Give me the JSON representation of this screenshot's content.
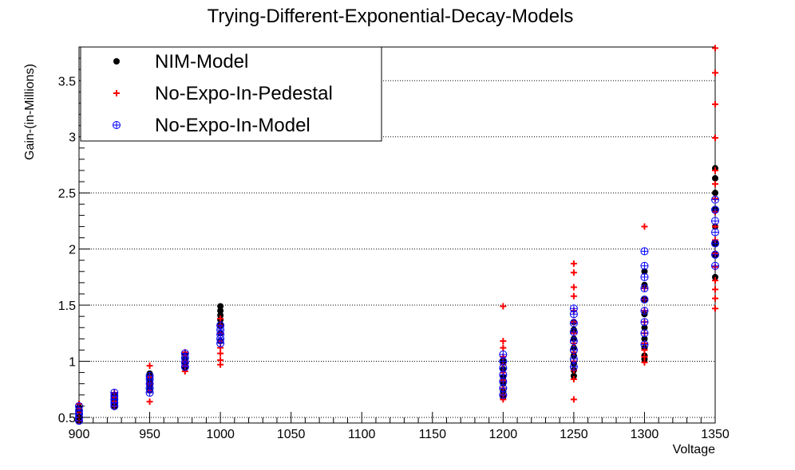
{
  "chart_data": {
    "type": "scatter",
    "title": "Trying-Different-Exponential-Decay-Models",
    "xlabel": "Voltage",
    "ylabel": "Gain-(in-Millions)",
    "xlim": [
      900,
      1350
    ],
    "ylim": [
      0.45,
      3.8
    ],
    "x_ticks": [
      900,
      950,
      1000,
      1050,
      1100,
      1150,
      1200,
      1250,
      1300,
      1350
    ],
    "y_ticks": [
      0.5,
      1,
      1.5,
      2,
      2.5,
      3,
      3.5
    ],
    "y_tick_labels": [
      "0.5",
      "1",
      "1.5",
      "2",
      "2.5",
      "3",
      "3.5"
    ],
    "grid": "horizontal dotted",
    "legend_position": "top-left",
    "series": [
      {
        "name": "NIM-Model",
        "marker": "filled-circle",
        "color": "#000000",
        "points": [
          [
            900,
            0.47
          ],
          [
            900,
            0.5
          ],
          [
            900,
            0.53
          ],
          [
            900,
            0.56
          ],
          [
            900,
            0.59
          ],
          [
            925,
            0.6
          ],
          [
            925,
            0.63
          ],
          [
            925,
            0.66
          ],
          [
            925,
            0.69
          ],
          [
            950,
            0.74
          ],
          [
            950,
            0.78
          ],
          [
            950,
            0.82
          ],
          [
            950,
            0.86
          ],
          [
            950,
            0.89
          ],
          [
            975,
            0.94
          ],
          [
            975,
            0.98
          ],
          [
            975,
            1.02
          ],
          [
            975,
            1.06
          ],
          [
            1000,
            1.18
          ],
          [
            1000,
            1.25
          ],
          [
            1000,
            1.32
          ],
          [
            1000,
            1.37
          ],
          [
            1000,
            1.41
          ],
          [
            1000,
            1.45
          ],
          [
            1000,
            1.49
          ],
          [
            1200,
            0.68
          ],
          [
            1200,
            0.73
          ],
          [
            1200,
            0.8
          ],
          [
            1200,
            0.86
          ],
          [
            1200,
            0.93
          ],
          [
            1200,
            1.0
          ],
          [
            1250,
            0.87
          ],
          [
            1250,
            0.92
          ],
          [
            1250,
            0.98
          ],
          [
            1250,
            1.05
          ],
          [
            1250,
            1.12
          ],
          [
            1250,
            1.2
          ],
          [
            1250,
            1.28
          ],
          [
            1250,
            1.35
          ],
          [
            1300,
            1.02
          ],
          [
            1300,
            1.05
          ],
          [
            1300,
            1.12
          ],
          [
            1300,
            1.2
          ],
          [
            1300,
            1.3
          ],
          [
            1300,
            1.42
          ],
          [
            1300,
            1.55
          ],
          [
            1300,
            1.68
          ],
          [
            1300,
            1.8
          ],
          [
            1350,
            1.75
          ],
          [
            1350,
            1.95
          ],
          [
            1350,
            2.05
          ],
          [
            1350,
            2.2
          ],
          [
            1350,
            2.35
          ],
          [
            1350,
            2.5
          ],
          [
            1350,
            2.63
          ],
          [
            1350,
            2.72
          ]
        ]
      },
      {
        "name": "No-Expo-In-Pedestal",
        "marker": "plus",
        "color": "#ff0000",
        "points": [
          [
            900,
            0.47
          ],
          [
            900,
            0.5
          ],
          [
            900,
            0.54
          ],
          [
            900,
            0.58
          ],
          [
            900,
            0.62
          ],
          [
            925,
            0.6
          ],
          [
            925,
            0.64
          ],
          [
            925,
            0.68
          ],
          [
            925,
            0.72
          ],
          [
            950,
            0.64
          ],
          [
            950,
            0.74
          ],
          [
            950,
            0.8
          ],
          [
            950,
            0.86
          ],
          [
            950,
            0.96
          ],
          [
            975,
            0.91
          ],
          [
            975,
            0.96
          ],
          [
            975,
            1.0
          ],
          [
            975,
            1.05
          ],
          [
            975,
            1.08
          ],
          [
            1000,
            0.97
          ],
          [
            1000,
            1.01
          ],
          [
            1000,
            1.07
          ],
          [
            1000,
            1.12
          ],
          [
            1000,
            1.18
          ],
          [
            1000,
            1.25
          ],
          [
            1000,
            1.32
          ],
          [
            1000,
            1.38
          ],
          [
            1200,
            0.66
          ],
          [
            1200,
            0.7
          ],
          [
            1200,
            0.76
          ],
          [
            1200,
            0.83
          ],
          [
            1200,
            0.9
          ],
          [
            1200,
            0.97
          ],
          [
            1200,
            1.04
          ],
          [
            1200,
            1.12
          ],
          [
            1200,
            1.18
          ],
          [
            1200,
            1.49
          ],
          [
            1250,
            0.66
          ],
          [
            1250,
            0.84
          ],
          [
            1250,
            0.92
          ],
          [
            1250,
            1.0
          ],
          [
            1250,
            1.08
          ],
          [
            1250,
            1.16
          ],
          [
            1250,
            1.25
          ],
          [
            1250,
            1.35
          ],
          [
            1250,
            1.45
          ],
          [
            1250,
            1.58
          ],
          [
            1250,
            1.66
          ],
          [
            1250,
            1.79
          ],
          [
            1250,
            1.87
          ],
          [
            1300,
            0.99
          ],
          [
            1300,
            1.04
          ],
          [
            1300,
            1.1
          ],
          [
            1300,
            1.16
          ],
          [
            1300,
            1.25
          ],
          [
            1300,
            1.35
          ],
          [
            1300,
            1.45
          ],
          [
            1300,
            1.55
          ],
          [
            1300,
            1.65
          ],
          [
            1300,
            2.2
          ],
          [
            1350,
            1.47
          ],
          [
            1350,
            1.56
          ],
          [
            1350,
            1.64
          ],
          [
            1350,
            1.72
          ],
          [
            1350,
            1.84
          ],
          [
            1350,
            1.96
          ],
          [
            1350,
            2.08
          ],
          [
            1350,
            2.2
          ],
          [
            1350,
            2.33
          ],
          [
            1350,
            2.45
          ],
          [
            1350,
            2.58
          ],
          [
            1350,
            2.7
          ],
          [
            1350,
            2.99
          ],
          [
            1350,
            3.29
          ],
          [
            1350,
            3.57
          ],
          [
            1350,
            3.79
          ]
        ]
      },
      {
        "name": "No-Expo-In-Model",
        "marker": "circle-plus",
        "color": "#0000ff",
        "points": [
          [
            900,
            0.47
          ],
          [
            900,
            0.5
          ],
          [
            900,
            0.53
          ],
          [
            900,
            0.56
          ],
          [
            900,
            0.6
          ],
          [
            925,
            0.6
          ],
          [
            925,
            0.63
          ],
          [
            925,
            0.66
          ],
          [
            925,
            0.69
          ],
          [
            925,
            0.72
          ],
          [
            950,
            0.72
          ],
          [
            950,
            0.76
          ],
          [
            950,
            0.8
          ],
          [
            950,
            0.84
          ],
          [
            950,
            0.87
          ],
          [
            975,
            0.95
          ],
          [
            975,
            0.99
          ],
          [
            975,
            1.03
          ],
          [
            975,
            1.07
          ],
          [
            1000,
            1.16
          ],
          [
            1000,
            1.2
          ],
          [
            1000,
            1.24
          ],
          [
            1000,
            1.28
          ],
          [
            1000,
            1.32
          ],
          [
            1200,
            0.7
          ],
          [
            1200,
            0.76
          ],
          [
            1200,
            0.82
          ],
          [
            1200,
            0.88
          ],
          [
            1200,
            0.94
          ],
          [
            1200,
            1.0
          ],
          [
            1200,
            1.06
          ],
          [
            1250,
            0.95
          ],
          [
            1250,
            1.02
          ],
          [
            1250,
            1.1
          ],
          [
            1250,
            1.18
          ],
          [
            1250,
            1.26
          ],
          [
            1250,
            1.34
          ],
          [
            1250,
            1.42
          ],
          [
            1250,
            1.47
          ],
          [
            1300,
            1.15
          ],
          [
            1300,
            1.25
          ],
          [
            1300,
            1.35
          ],
          [
            1300,
            1.45
          ],
          [
            1300,
            1.55
          ],
          [
            1300,
            1.65
          ],
          [
            1300,
            1.75
          ],
          [
            1300,
            1.85
          ],
          [
            1300,
            1.98
          ],
          [
            1350,
            1.85
          ],
          [
            1350,
            1.95
          ],
          [
            1350,
            2.05
          ],
          [
            1350,
            2.15
          ],
          [
            1350,
            2.25
          ],
          [
            1350,
            2.35
          ],
          [
            1350,
            2.44
          ]
        ]
      }
    ]
  }
}
